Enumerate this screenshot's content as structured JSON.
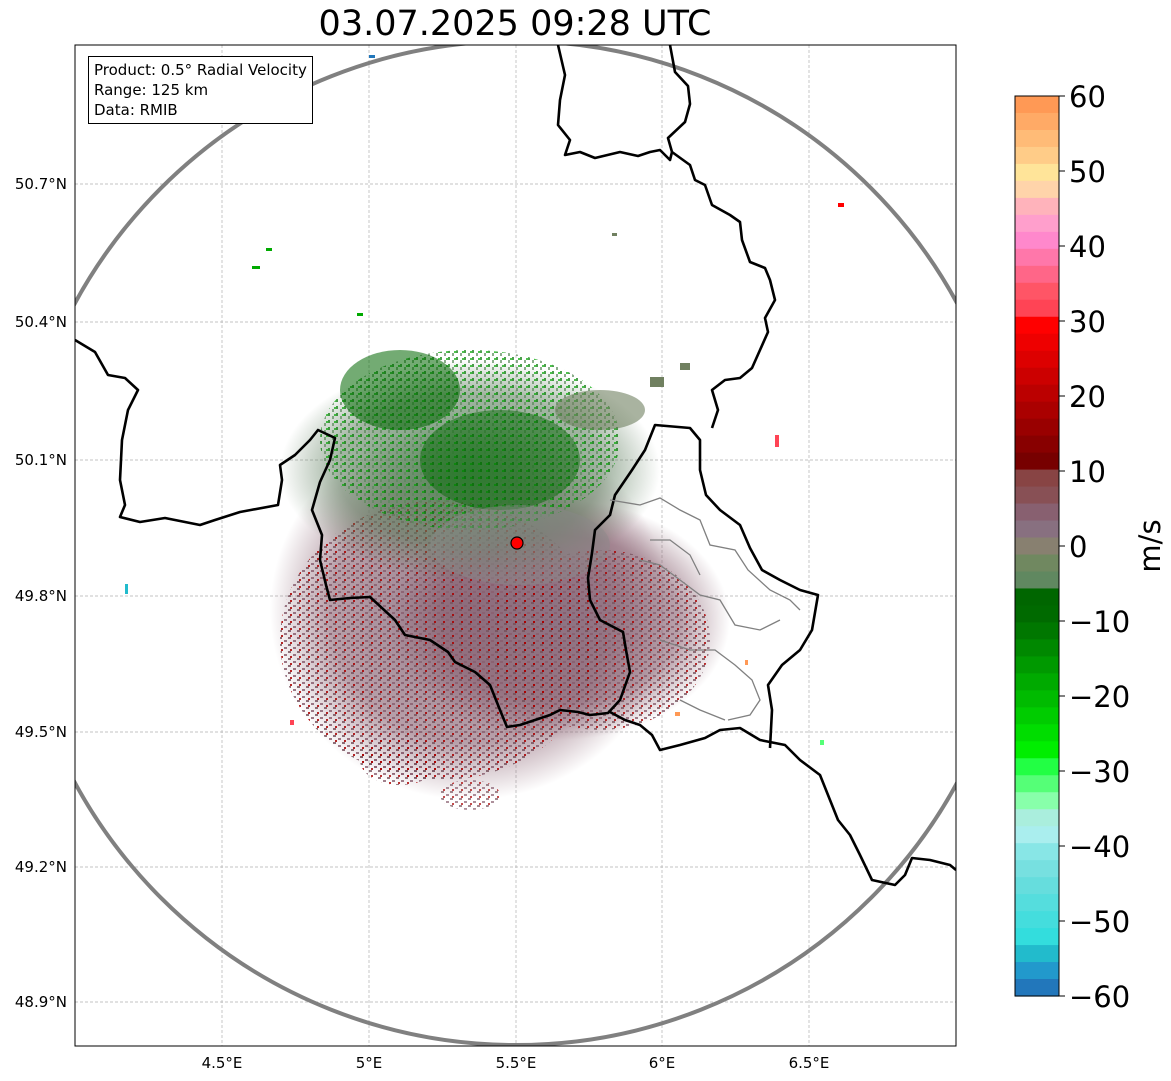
{
  "title": "03.07.2025 09:28 UTC",
  "info": {
    "product": "Product: 0.5° Radial Velocity",
    "range": "Range: 125 km",
    "data": "Data: RMIB"
  },
  "lat_labels": [
    "50.7°N",
    "50.4°N",
    "50.1°N",
    "49.8°N",
    "49.5°N",
    "49.2°N",
    "48.9°N"
  ],
  "lon_labels": [
    "4.5°E",
    "5°E",
    "5.5°E",
    "6°E",
    "6.5°E"
  ],
  "colorbar": {
    "unit": "m/s",
    "ticks": [
      "60",
      "50",
      "40",
      "30",
      "20",
      "10",
      "0",
      "−10",
      "−20",
      "−30",
      "−40",
      "−50",
      "−60"
    ],
    "colors": [
      "#ff9955",
      "#ffaa66",
      "#ffbb77",
      "#ffcc88",
      "#ffe499",
      "#ffd4aa",
      "#ffb3bb",
      "#ff9fcc",
      "#ff88cc",
      "#ff77aa",
      "#ff6688",
      "#ff5566",
      "#ff4455",
      "#ff0000",
      "#ee0000",
      "#dd0000",
      "#cc0000",
      "#bb0000",
      "#aa0000",
      "#990000",
      "#880000",
      "#770000",
      "#884444",
      "#885055",
      "#886070",
      "#887080",
      "#888070",
      "#708860",
      "#608860",
      "#006600",
      "#006a00",
      "#007700",
      "#008800",
      "#009900",
      "#00aa00",
      "#00bb00",
      "#00cc00",
      "#00dd00",
      "#00ee00",
      "#22ff44",
      "#55ff77",
      "#88ffaa",
      "#aaeedd",
      "#aaeeee",
      "#88e6e6",
      "#77e0e0",
      "#66dddd",
      "#55dddd",
      "#44dddd",
      "#33dddd",
      "#22bbcc",
      "#2299cc",
      "#2277bb"
    ]
  },
  "colors": {
    "range_ring": "#808080",
    "border": "#000000",
    "radar_site": "#ff0000"
  },
  "radar_site_name": "radar-site"
}
